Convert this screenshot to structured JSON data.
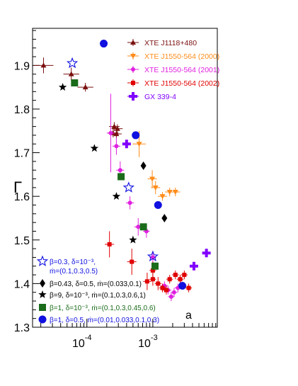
{
  "chart_data": {
    "type": "scatter",
    "title": "",
    "xlabel": "",
    "ylabel": "Γ",
    "panel_label": "a",
    "x_scale": "log",
    "xlim": [
      1.5e-05,
      0.0095
    ],
    "ylim": [
      1.3,
      1.985
    ],
    "x_ticks": [
      {
        "value": 0.0001,
        "base": "10",
        "exp": "-4"
      },
      {
        "value": 0.001,
        "base": "10",
        "exp": "-3"
      }
    ],
    "y_ticks": [
      {
        "value": 1.3,
        "label": "1.3"
      },
      {
        "value": 1.4,
        "label": "1.4"
      },
      {
        "value": 1.5,
        "label": "1.5"
      },
      {
        "value": 1.6,
        "label": "1.6"
      },
      {
        "value": 1.7,
        "label": "1.7"
      },
      {
        "value": 1.8,
        "label": "1.8"
      },
      {
        "value": 1.9,
        "label": "1.9"
      }
    ],
    "grid": false,
    "data_legend": [
      {
        "name": "XTE J1118+480",
        "color": "#7a1010",
        "marker": "triangle"
      },
      {
        "name": "XTE J1550-564 (2000)",
        "color": "#ff8c1a",
        "marker": "triangle-down"
      },
      {
        "name": "XTE J1550-564 (2001)",
        "color": "#e020e0",
        "marker": "circle-small"
      },
      {
        "name": "XTE J1550-564 (2002)",
        "color": "#e00000",
        "marker": "square-small"
      },
      {
        "name": "GX 339-4",
        "color": "#8000ff",
        "marker": "cross"
      }
    ],
    "model_legend": [
      {
        "label": "β=0.3, δ=10⁻³,",
        "label2": "ṁ=(0.1,0.3,0.5)",
        "color": "#1010e0",
        "marker": "open-star"
      },
      {
        "label": "β=0.43, δ=0.5, ṁ=(0.033,0.1)",
        "label2": "",
        "color": "#000000",
        "marker": "diamond"
      },
      {
        "label": "β=9, δ=10⁻³, ṁ=(0.1,0.3,0.6,1)",
        "label2": "",
        "color": "#000000",
        "marker": "star"
      },
      {
        "label": "β=1, δ=10⁻³, ṁ=(0.1,0.3,0.45,0.6)",
        "label2": "",
        "color": "#1a6b1a",
        "marker": "square"
      },
      {
        "label": "β=1, δ=0.5, ṁ=(0.01,0.033,0.1,0.3)",
        "label2": "",
        "color": "#1010e0",
        "marker": "circle"
      }
    ],
    "series": [
      {
        "name": "XTE J1118+480",
        "color": "#7a1010",
        "marker": "triangle",
        "points": [
          {
            "x": 2.2e-05,
            "y": 1.9,
            "xerr": 0.15,
            "yerr": 0.018
          },
          {
            "x": 5.8e-05,
            "y": 1.88,
            "xerr": 0.12,
            "yerr": 0.015
          },
          {
            "x": 9.5e-05,
            "y": 1.85,
            "xerr": 0.12,
            "yerr": 0.01
          },
          {
            "x": 0.00026,
            "y": 1.76,
            "xerr": 0.08,
            "yerr": 0.01
          },
          {
            "x": 0.00029,
            "y": 1.755,
            "xerr": 0.08,
            "yerr": 0.01
          },
          {
            "x": 0.00025,
            "y": 1.745,
            "xerr": 0.08,
            "yerr": 0.01
          },
          {
            "x": 0.00028,
            "y": 1.743,
            "xerr": 0.08,
            "yerr": 0.01
          }
        ]
      },
      {
        "name": "XTE J1550-564 (2000)",
        "color": "#ff8c1a",
        "marker": "triangle-down",
        "points": [
          {
            "x": 0.00062,
            "y": 1.72,
            "xerr": 0.1,
            "yerr": 0.03
          },
          {
            "x": 0.00098,
            "y": 1.64,
            "xerr": 0.07,
            "yerr": 0.02
          },
          {
            "x": 0.0011,
            "y": 1.62,
            "xerr": 0.07,
            "yerr": 0.015
          },
          {
            "x": 0.0014,
            "y": 1.6,
            "xerr": 0.07,
            "yerr": 0.01
          },
          {
            "x": 0.0018,
            "y": 1.61,
            "xerr": 0.07,
            "yerr": 0.01
          },
          {
            "x": 0.0022,
            "y": 1.61,
            "xerr": 0.07,
            "yerr": 0.01
          }
        ]
      },
      {
        "name": "XTE J1550-564 (2001)",
        "color": "#e020e0",
        "marker": "circle-small",
        "points": [
          {
            "x": 0.00023,
            "y": 1.745,
            "xerr": 0.06,
            "yerr": 0.09
          },
          {
            "x": 0.00028,
            "y": 1.715,
            "xerr": 0.06,
            "yerr": 0.02
          },
          {
            "x": 0.00032,
            "y": 1.66,
            "xerr": 0.06,
            "yerr": 0.02
          },
          {
            "x": 0.00045,
            "y": 1.585,
            "xerr": 0.06,
            "yerr": 0.015
          },
          {
            "x": 0.0006,
            "y": 1.53,
            "xerr": 0.06,
            "yerr": 0.02
          },
          {
            "x": 0.0008,
            "y": 1.52,
            "xerr": 0.05,
            "yerr": 0.015
          },
          {
            "x": 0.001,
            "y": 1.46,
            "xerr": 0.05,
            "yerr": 0.015
          },
          {
            "x": 0.0015,
            "y": 1.395,
            "xerr": 0.05,
            "yerr": 0.01
          },
          {
            "x": 0.0017,
            "y": 1.385,
            "xerr": 0.05,
            "yerr": 0.01
          },
          {
            "x": 0.0019,
            "y": 1.37,
            "xerr": 0.05,
            "yerr": 0.01
          },
          {
            "x": 0.0021,
            "y": 1.38,
            "xerr": 0.05,
            "yerr": 0.01
          },
          {
            "x": 0.0024,
            "y": 1.39,
            "xerr": 0.05,
            "yerr": 0.01
          }
        ]
      },
      {
        "name": "XTE J1550-564 (2002)",
        "color": "#e00000",
        "marker": "square-small",
        "points": [
          {
            "x": 0.00022,
            "y": 1.49,
            "xerr": 0.07,
            "yerr": 0.03
          },
          {
            "x": 0.00048,
            "y": 1.45,
            "xerr": 0.07,
            "yerr": 0.03
          },
          {
            "x": 0.00082,
            "y": 1.405,
            "xerr": 0.06,
            "yerr": 0.02
          },
          {
            "x": 0.001,
            "y": 1.43,
            "xerr": 0.05,
            "yerr": 0.02
          },
          {
            "x": 0.001,
            "y": 1.41,
            "xerr": 0.05,
            "yerr": 0.015
          },
          {
            "x": 0.0012,
            "y": 1.4,
            "xerr": 0.05,
            "yerr": 0.015
          },
          {
            "x": 0.0014,
            "y": 1.39,
            "xerr": 0.05,
            "yerr": 0.01
          },
          {
            "x": 0.0016,
            "y": 1.385,
            "xerr": 0.05,
            "yerr": 0.01
          },
          {
            "x": 0.0018,
            "y": 1.41,
            "xerr": 0.05,
            "yerr": 0.01
          },
          {
            "x": 0.0022,
            "y": 1.42,
            "xerr": 0.05,
            "yerr": 0.01
          },
          {
            "x": 0.0026,
            "y": 1.41,
            "xerr": 0.05,
            "yerr": 0.01
          },
          {
            "x": 0.003,
            "y": 1.42,
            "xerr": 0.05,
            "yerr": 0.01
          },
          {
            "x": 0.0035,
            "y": 1.39,
            "xerr": 0.05,
            "yerr": 0.01
          }
        ]
      },
      {
        "name": "GX 339-4",
        "color": "#8000ff",
        "marker": "cross",
        "points": [
          {
            "x": 0.0004,
            "y": 1.72
          },
          {
            "x": 0.0042,
            "y": 1.44
          },
          {
            "x": 0.0065,
            "y": 1.47
          }
        ]
      },
      {
        "name": "model-open-star",
        "color": "#1010e0",
        "marker": "open-star",
        "points": [
          {
            "x": 6e-05,
            "y": 1.905
          },
          {
            "x": 0.00043,
            "y": 1.62
          },
          {
            "x": 0.001,
            "y": 1.462
          }
        ]
      },
      {
        "name": "model-diamond",
        "color": "#000000",
        "marker": "diamond",
        "points": [
          {
            "x": 0.00072,
            "y": 1.67
          },
          {
            "x": 0.0015,
            "y": 1.55
          }
        ]
      },
      {
        "name": "model-star",
        "color": "#000000",
        "marker": "star",
        "points": [
          {
            "x": 4.3e-05,
            "y": 1.85
          },
          {
            "x": 0.00013,
            "y": 1.71
          },
          {
            "x": 0.00028,
            "y": 1.6
          },
          {
            "x": 0.0005,
            "y": 1.5
          }
        ]
      },
      {
        "name": "model-square",
        "color": "#1a6b1a",
        "marker": "square",
        "points": [
          {
            "x": 6.5e-05,
            "y": 1.86
          },
          {
            "x": 0.00033,
            "y": 1.645
          },
          {
            "x": 0.00072,
            "y": 1.53
          },
          {
            "x": 0.00108,
            "y": 1.44
          }
        ]
      },
      {
        "name": "model-circle",
        "color": "#1010e0",
        "marker": "circle",
        "points": [
          {
            "x": 0.00018,
            "y": 1.95
          },
          {
            "x": 0.00055,
            "y": 1.74
          },
          {
            "x": 0.0012,
            "y": 1.58
          },
          {
            "x": 0.0028,
            "y": 1.395
          }
        ]
      }
    ]
  }
}
